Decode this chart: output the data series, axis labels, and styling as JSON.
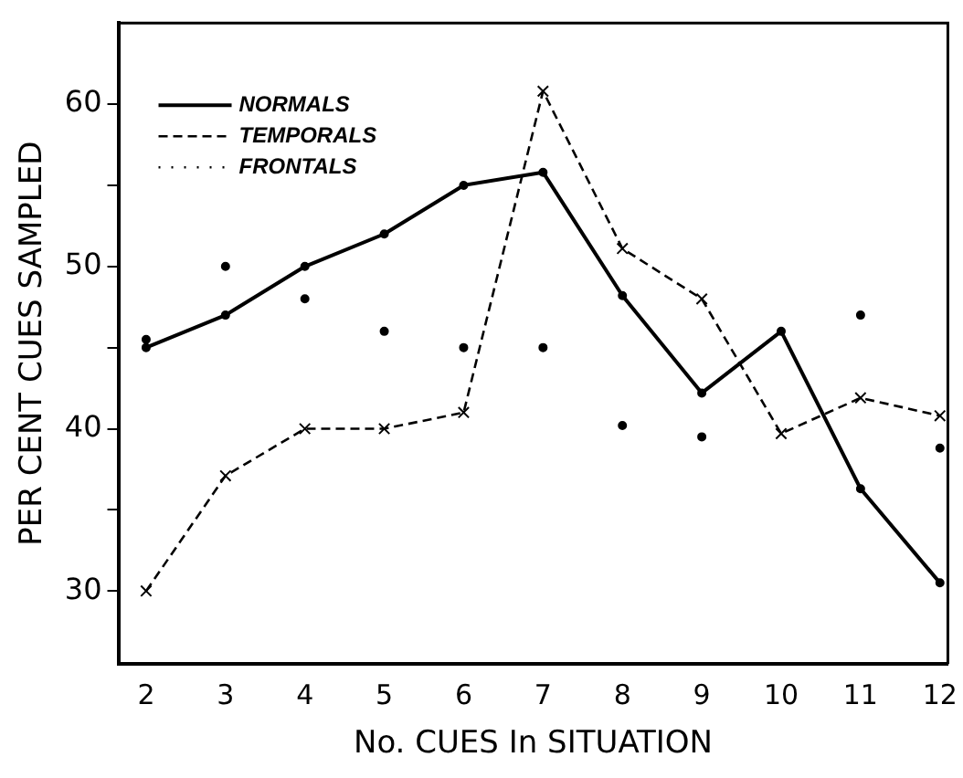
{
  "chart_data": {
    "type": "line",
    "xlabel": "No. CUES In SITUATION",
    "ylabel": "PER CENT CUES SAMPLED",
    "x": [
      2,
      3,
      4,
      5,
      6,
      7,
      8,
      9,
      10,
      11,
      12
    ],
    "xlim": [
      1.65,
      12.1
    ],
    "xticks": [
      2,
      3,
      4,
      5,
      6,
      7,
      8,
      9,
      10,
      11,
      12
    ],
    "ylim": [
      25.5,
      65
    ],
    "yticks": [
      30,
      {
        "value": 35,
        "label": null
      },
      40,
      {
        "value": 45,
        "label": null
      },
      50,
      {
        "value": 55,
        "label": null
      },
      60
    ],
    "grid": false,
    "legend": "top left",
    "series": [
      {
        "name": "NORMALS",
        "color": "#000000",
        "type": "line",
        "line_style": "solid",
        "marker": "circle",
        "values": [
          45,
          47,
          50,
          52,
          55,
          55.8,
          48.2,
          42.2,
          46,
          36.3,
          30.5
        ]
      },
      {
        "name": "TEMPORALS",
        "color": "#000000",
        "type": "line",
        "line_style": "dashed",
        "marker": "cross",
        "values": [
          30,
          37.1,
          40,
          40,
          41,
          60.8,
          51.1,
          48,
          39.7,
          41.9,
          40.8
        ]
      },
      {
        "name": "FRONTALS",
        "color": "#000000",
        "type": "scatter",
        "line_style": "dotted",
        "marker": "circle",
        "values": [
          45.5,
          50,
          48,
          46,
          45,
          45,
          40.2,
          39.5,
          null,
          47,
          38.8
        ]
      }
    ]
  }
}
